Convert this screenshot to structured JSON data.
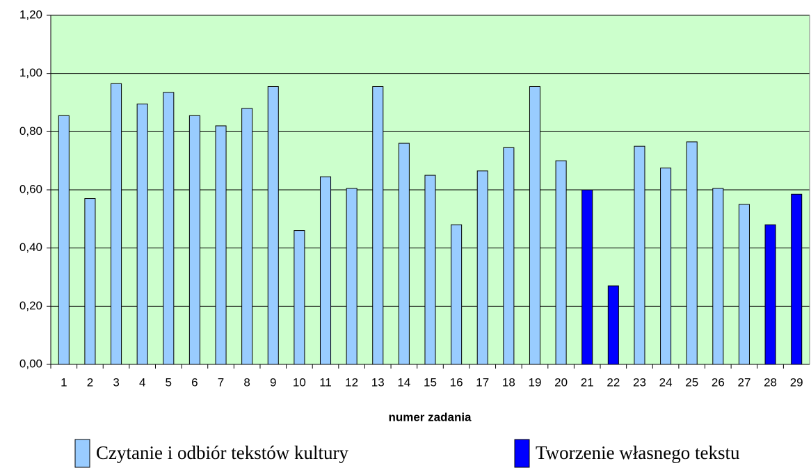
{
  "chart_data": {
    "type": "bar",
    "x_label": "numer zadania",
    "categories": [
      "1",
      "2",
      "3",
      "4",
      "5",
      "6",
      "7",
      "8",
      "9",
      "10",
      "11",
      "12",
      "13",
      "14",
      "15",
      "16",
      "17",
      "18",
      "19",
      "20",
      "21",
      "22",
      "23",
      "24",
      "25",
      "26",
      "27",
      "28",
      "29"
    ],
    "series": [
      {
        "name": "Czytanie i odbiór tekstów kultury",
        "color": "#99ccff",
        "values": [
          0.855,
          0.57,
          0.965,
          0.895,
          0.935,
          0.855,
          0.82,
          0.88,
          0.955,
          0.46,
          0.645,
          0.605,
          0.955,
          0.76,
          0.65,
          0.48,
          0.665,
          0.745,
          0.955,
          0.7,
          null,
          null,
          0.75,
          0.675,
          0.765,
          0.605,
          0.55,
          null,
          null
        ]
      },
      {
        "name": "Tworzenie własnego tekstu",
        "color": "#0000ff",
        "values": [
          null,
          null,
          null,
          null,
          null,
          null,
          null,
          null,
          null,
          null,
          null,
          null,
          null,
          null,
          null,
          null,
          null,
          null,
          null,
          null,
          0.6,
          0.27,
          null,
          null,
          null,
          null,
          null,
          0.48,
          0.585
        ]
      }
    ],
    "ylim": [
      0,
      1.2
    ],
    "yticks": [
      {
        "value": 0,
        "label": "0,00"
      },
      {
        "value": 0.2,
        "label": "0,20"
      },
      {
        "value": 0.4,
        "label": "0,40"
      },
      {
        "value": 0.6,
        "label": "0,60"
      },
      {
        "value": 0.8,
        "label": "0,80"
      },
      {
        "value": 1,
        "label": "1,00"
      },
      {
        "value": 1.2,
        "label": "1,20"
      }
    ],
    "grid": true,
    "plot_background": "#ccffcc"
  }
}
